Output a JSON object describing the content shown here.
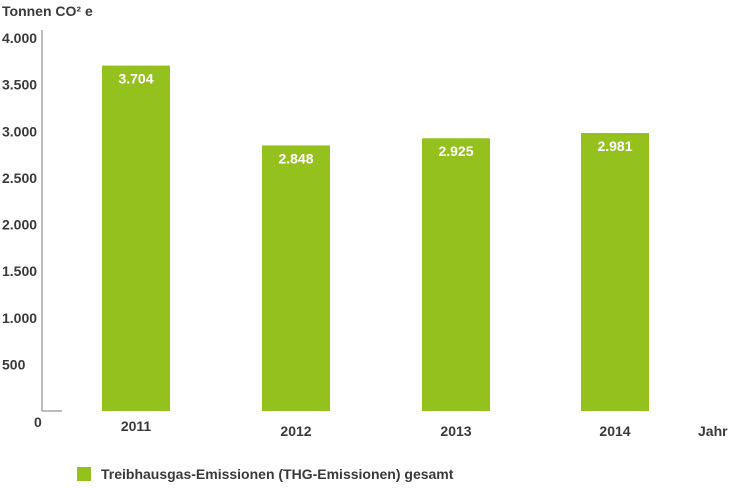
{
  "chart_data": {
    "type": "bar",
    "ylabel": "Tonnen CO² e",
    "xlabel": "Jahr",
    "categories": [
      "2011",
      "2012",
      "2013",
      "2014"
    ],
    "series": [
      {
        "name": "Treibhausgas-Emissionen (THG-Emissionen) gesamt",
        "values": [
          3704,
          2848,
          2925,
          2981
        ]
      }
    ],
    "data_labels": [
      "3.704",
      "2.848",
      "2.925",
      "2.981"
    ],
    "ylim": [
      0,
      4000
    ],
    "yticks": [
      500,
      1000,
      1500,
      2000,
      2500,
      3000,
      3500,
      4000
    ],
    "ytick_labels": [
      "500",
      "1.000",
      "1.500",
      "2.000",
      "2.500",
      "3.000",
      "3.500",
      "4.000"
    ],
    "origin_label": "0",
    "grid": false,
    "legend_position": "bottom-left",
    "colors": {
      "bar": "#95c11f",
      "axis": "#7a7a7a",
      "text": "#3a3a3a"
    }
  }
}
